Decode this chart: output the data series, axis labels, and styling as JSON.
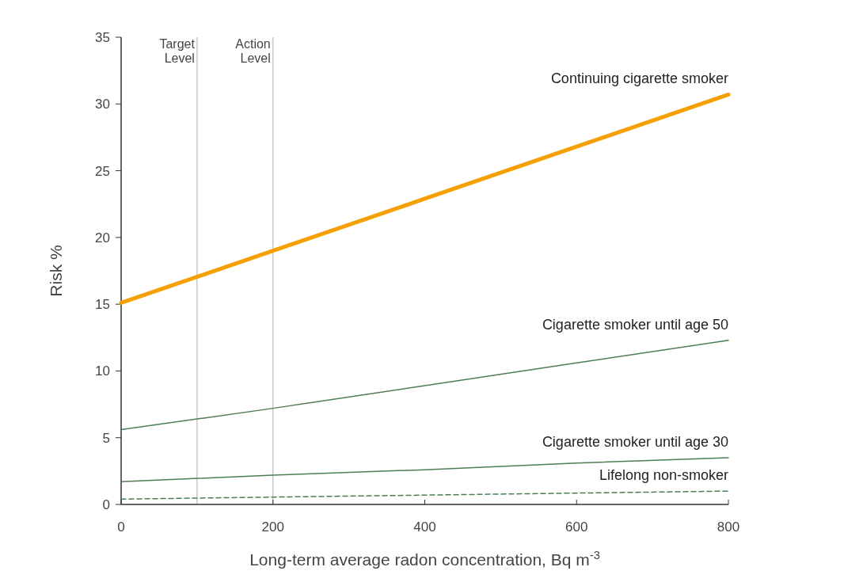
{
  "chart_data": {
    "type": "line",
    "xlabel": "Long-term average radon concentration, Bq m$^{-3}$",
    "ylabel": "Risk %",
    "x": [
      0,
      200,
      400,
      600,
      800
    ],
    "xlim": [
      0,
      800
    ],
    "xticks": [
      0,
      200,
      400,
      600,
      800
    ],
    "ylim": [
      0,
      35
    ],
    "yticks": [
      0,
      5,
      10,
      15,
      20,
      25,
      30,
      35
    ],
    "grid": false,
    "marker": "none",
    "series": [
      {
        "name": "Continuing cigarette smoker",
        "color": "#f5a000",
        "values": [
          15.1,
          19.0,
          22.9,
          26.8,
          30.7
        ]
      },
      {
        "name": "Cigarette smoker until age 50",
        "color": "#4e7d55",
        "values": [
          5.6,
          7.2,
          8.9,
          10.6,
          12.3
        ]
      },
      {
        "name": "Cigarette smoker until age 30",
        "color": "#4e7d55",
        "values": [
          1.7,
          2.2,
          2.6,
          3.1,
          3.5
        ]
      },
      {
        "name": "Lifelong non-smoker",
        "color": "#4e7d55",
        "line_style": "dashed",
        "values": [
          0.4,
          0.55,
          0.7,
          0.85,
          1.0
        ]
      }
    ],
    "ref_lines": [
      {
        "axis": "x",
        "value": 100,
        "label": "Target Level",
        "color": "#c8c8c8"
      },
      {
        "axis": "x",
        "value": 200,
        "label": "Action Level",
        "color": "#c8c8c8"
      }
    ]
  }
}
